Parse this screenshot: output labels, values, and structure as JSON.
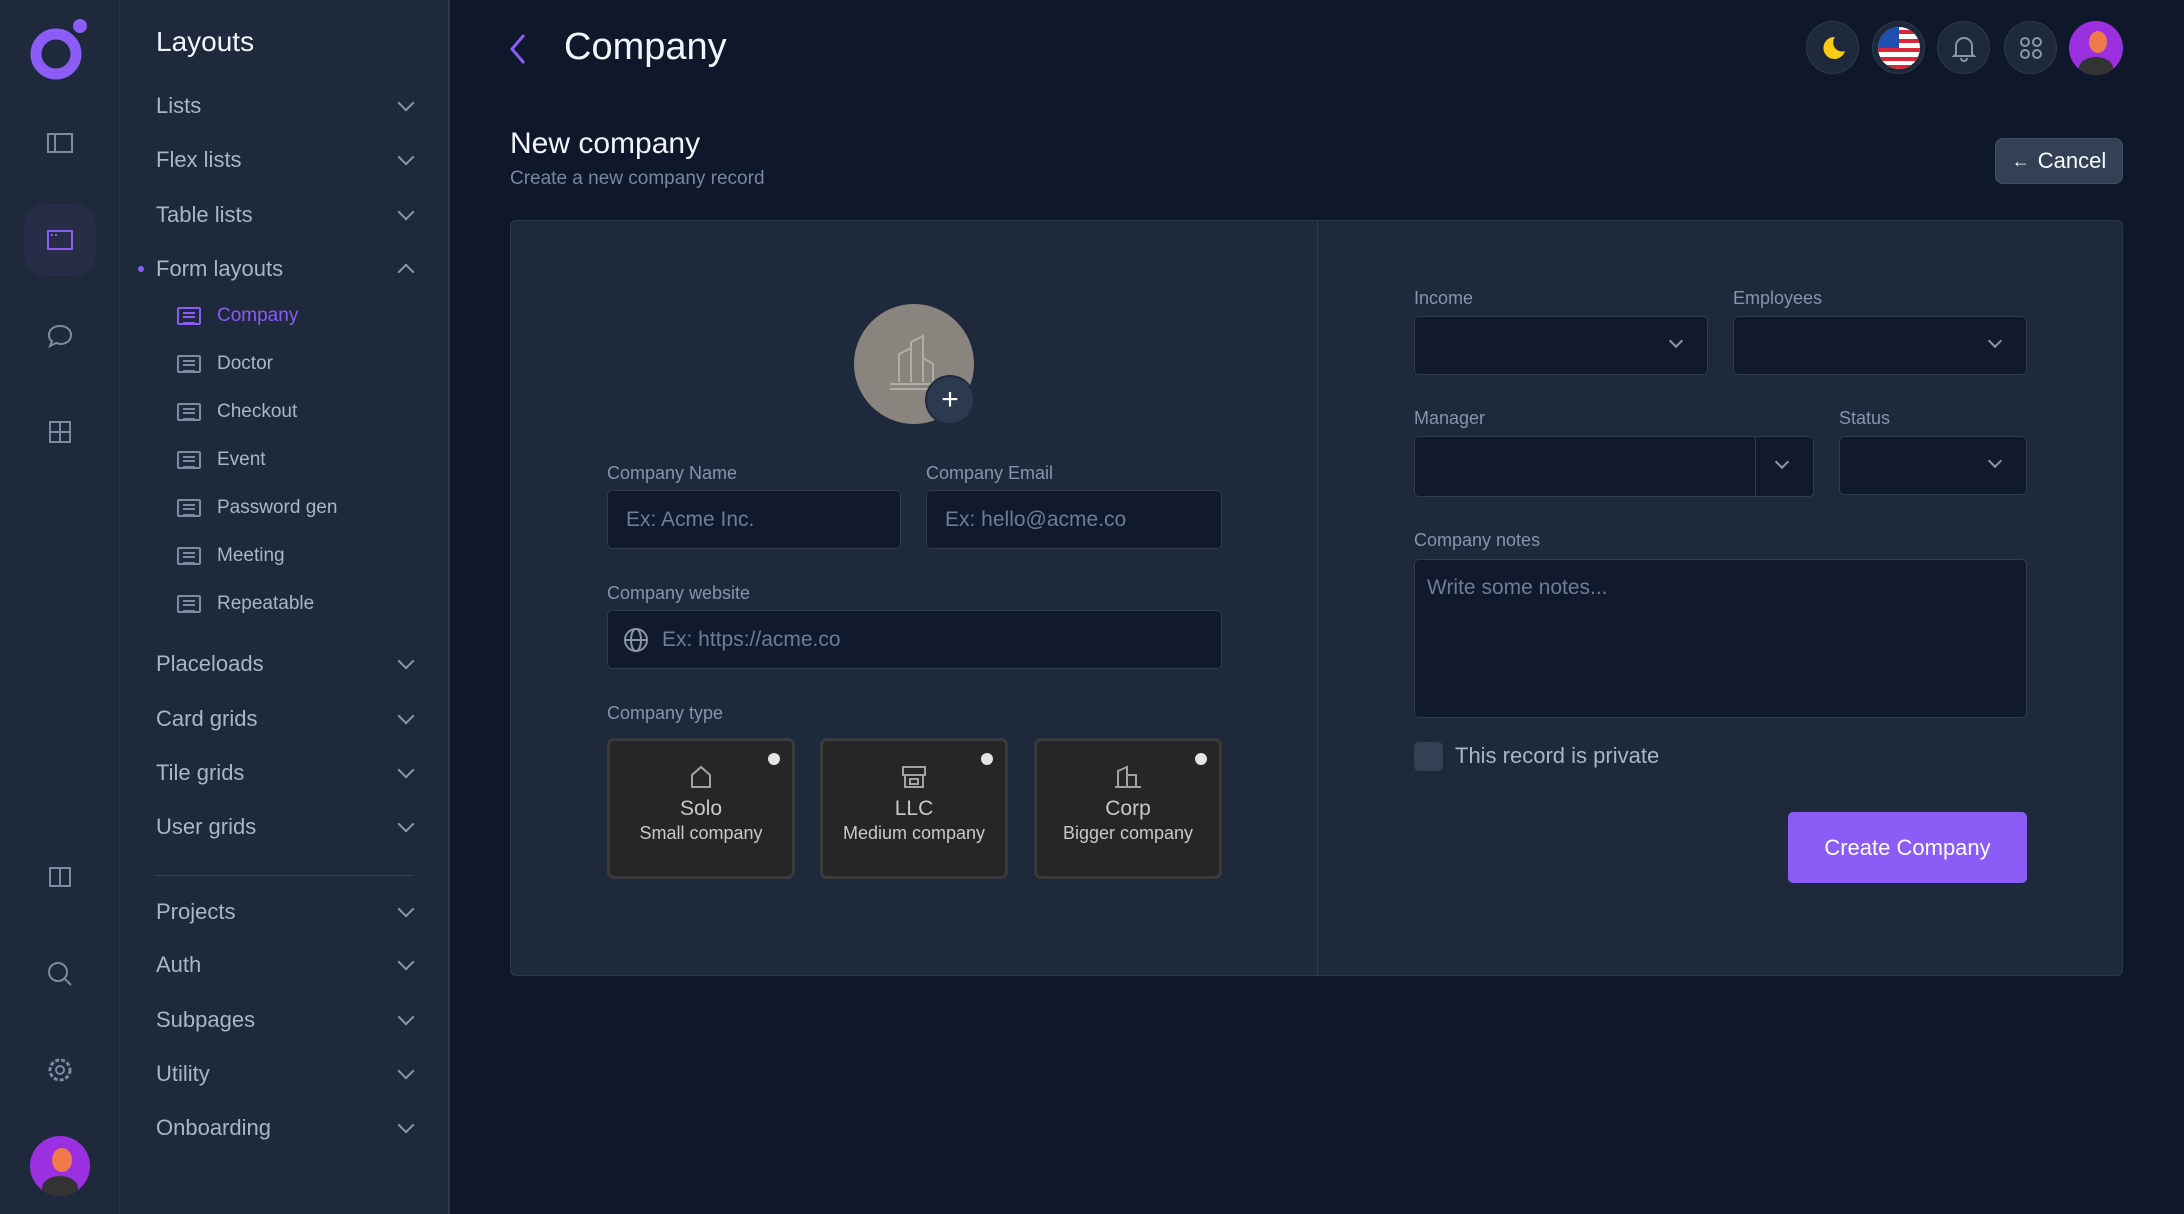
{
  "sidebar": {
    "title": "Layouts",
    "groups": [
      {
        "label": "Lists"
      },
      {
        "label": "Flex lists"
      },
      {
        "label": "Table lists"
      },
      {
        "label": "Form layouts"
      }
    ],
    "form_layouts": [
      {
        "label": "Company"
      },
      {
        "label": "Doctor"
      },
      {
        "label": "Checkout"
      },
      {
        "label": "Event"
      },
      {
        "label": "Password gen"
      },
      {
        "label": "Meeting"
      },
      {
        "label": "Repeatable"
      }
    ],
    "groups2": [
      {
        "label": "Placeloads"
      },
      {
        "label": "Card grids"
      },
      {
        "label": "Tile grids"
      },
      {
        "label": "User grids"
      }
    ],
    "groups3": [
      {
        "label": "Projects"
      },
      {
        "label": "Auth"
      },
      {
        "label": "Subpages"
      },
      {
        "label": "Utility"
      },
      {
        "label": "Onboarding"
      }
    ]
  },
  "header": {
    "title": "Company"
  },
  "page": {
    "title": "New company",
    "subtitle": "Create a new company record",
    "cancel_label": "Cancel"
  },
  "form": {
    "name_label": "Company Name",
    "name_placeholder": "Ex: Acme Inc.",
    "email_label": "Company Email",
    "email_placeholder": "Ex: hello@acme.co",
    "website_label": "Company website",
    "website_placeholder": "Ex: https://acme.co",
    "type_label": "Company type",
    "types": [
      {
        "title": "Solo",
        "subtitle": "Small company"
      },
      {
        "title": "LLC",
        "subtitle": "Medium company"
      },
      {
        "title": "Corp",
        "subtitle": "Bigger company"
      }
    ],
    "income_label": "Income",
    "employees_label": "Employees",
    "manager_label": "Manager",
    "status_label": "Status",
    "notes_label": "Company notes",
    "notes_placeholder": "Write some notes...",
    "private_label": "This record is private",
    "private_checked": false,
    "submit_label": "Create Company"
  },
  "colors": {
    "accent": "#8b5cf6",
    "bg": "#0f172a",
    "panel": "#1e293b"
  }
}
